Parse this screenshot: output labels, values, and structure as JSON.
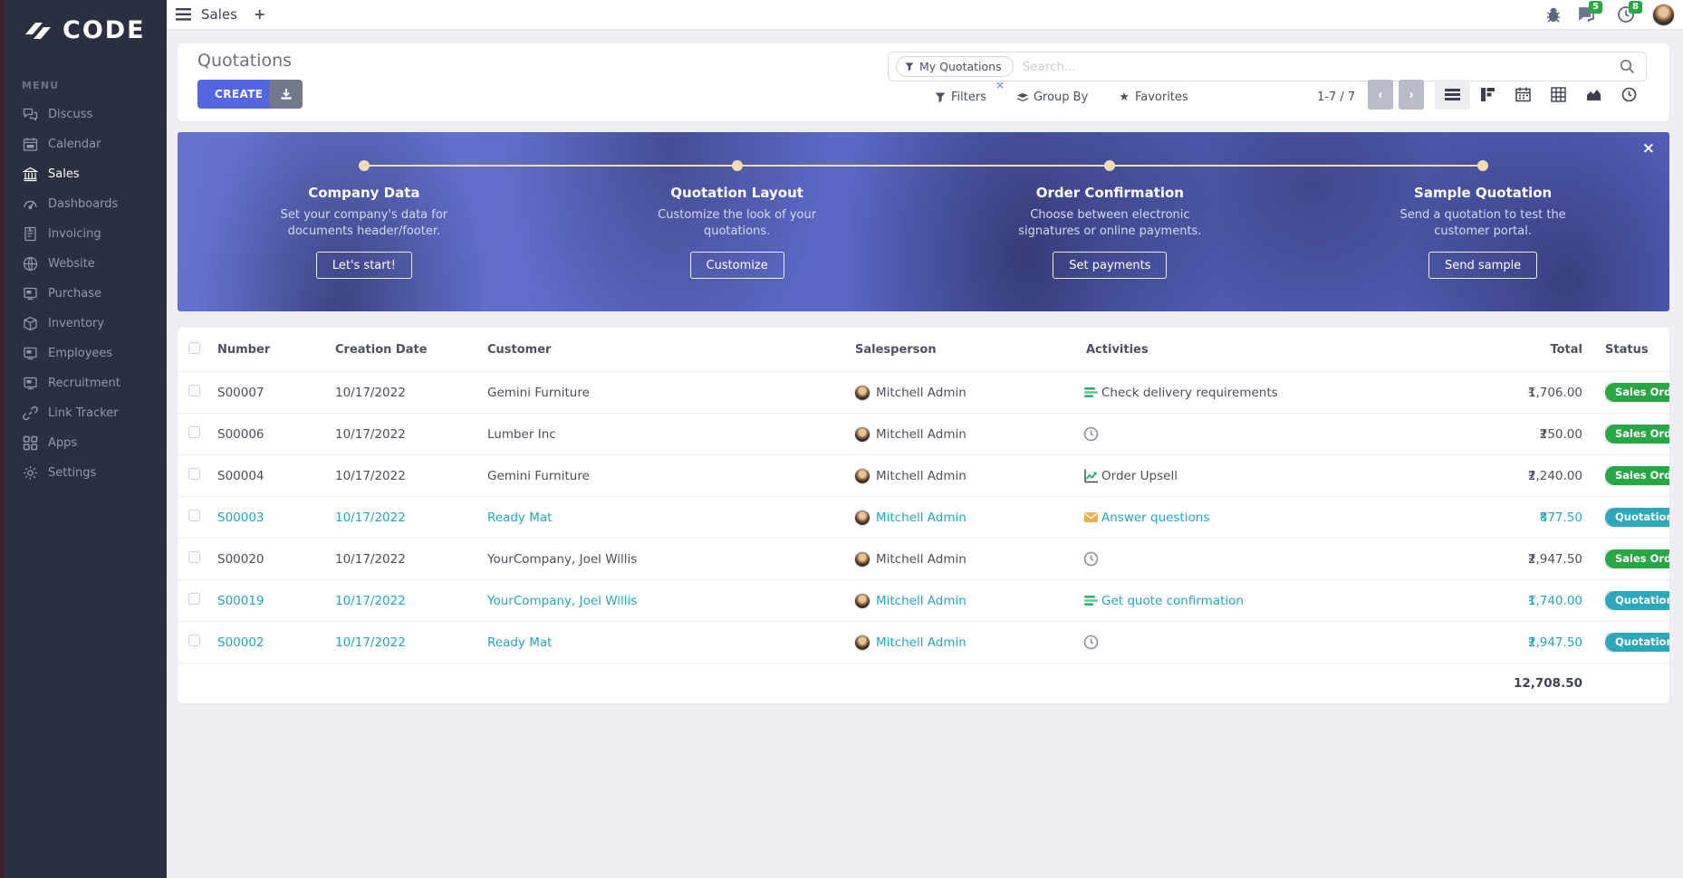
{
  "brand": {
    "name": "CODE"
  },
  "topbar": {
    "app_name": "Sales",
    "new_tab_label": "+",
    "messages_badge": "5",
    "activities_badge": "8"
  },
  "sidebar": {
    "section_label": "MENU",
    "items": [
      {
        "label": "Discuss",
        "icon": "discuss-icon",
        "active": false
      },
      {
        "label": "Calendar",
        "icon": "calendar-icon",
        "active": false
      },
      {
        "label": "Sales",
        "icon": "sales-icon",
        "active": true
      },
      {
        "label": "Dashboards",
        "icon": "dashboards-icon",
        "active": false
      },
      {
        "label": "Invoicing",
        "icon": "invoicing-icon",
        "active": false
      },
      {
        "label": "Website",
        "icon": "website-icon",
        "active": false
      },
      {
        "label": "Purchase",
        "icon": "purchase-icon",
        "active": false
      },
      {
        "label": "Inventory",
        "icon": "inventory-icon",
        "active": false
      },
      {
        "label": "Employees",
        "icon": "employees-icon",
        "active": false
      },
      {
        "label": "Recruitment",
        "icon": "recruitment-icon",
        "active": false
      },
      {
        "label": "Link Tracker",
        "icon": "link-tracker-icon",
        "active": false
      },
      {
        "label": "Apps",
        "icon": "apps-icon",
        "active": false
      },
      {
        "label": "Settings",
        "icon": "settings-icon",
        "active": false
      }
    ]
  },
  "control_panel": {
    "title": "Quotations",
    "create_button": "CREATE",
    "search": {
      "facet_label": "My Quotations",
      "facet_remove": "×",
      "placeholder": "Search..."
    },
    "filters_label": "Filters",
    "group_by_label": "Group By",
    "favorites_label": "Favorites",
    "pager_text": "1-7 / 7",
    "pager_prev": "‹",
    "pager_next": "›"
  },
  "banner": {
    "close_label": "×",
    "steps": [
      {
        "title": "Company Data",
        "desc": "Set your company's data for documents header/footer.",
        "button": "Let's start!"
      },
      {
        "title": "Quotation Layout",
        "desc": "Customize the look of your quotations.",
        "button": "Customize"
      },
      {
        "title": "Order Confirmation",
        "desc": "Choose between electronic signatures or online payments.",
        "button": "Set payments"
      },
      {
        "title": "Sample Quotation",
        "desc": "Send a quotation to test the customer portal.",
        "button": "Send sample"
      }
    ]
  },
  "table": {
    "headers": {
      "number": "Number",
      "date": "Creation Date",
      "customer": "Customer",
      "salesperson": "Salesperson",
      "activities": "Activities",
      "total": "Total",
      "status": "Status"
    },
    "currency": "₹",
    "rows": [
      {
        "number": "S00007",
        "date": "10/17/2022",
        "customer": "Gemini Furniture",
        "salesperson": "Mitchell Admin",
        "activity": "Check delivery requirements",
        "activity_icon": "tasks-icon",
        "total": "1,706.00",
        "status": "Sales Order",
        "status_color": "green",
        "teal": false
      },
      {
        "number": "S00006",
        "date": "10/17/2022",
        "customer": "Lumber Inc",
        "salesperson": "Mitchell Admin",
        "activity": "",
        "activity_icon": "clock-icon",
        "total": "250.00",
        "status": "Sales Order",
        "status_color": "green",
        "teal": false
      },
      {
        "number": "S00004",
        "date": "10/17/2022",
        "customer": "Gemini Furniture",
        "salesperson": "Mitchell Admin",
        "activity": "Order Upsell",
        "activity_icon": "chart-icon",
        "total": "2,240.00",
        "status": "Sales Order",
        "status_color": "green",
        "teal": false
      },
      {
        "number": "S00003",
        "date": "10/17/2022",
        "customer": "Ready Mat",
        "salesperson": "Mitchell Admin",
        "activity": "Answer questions",
        "activity_icon": "envelope-icon",
        "total": "877.50",
        "status": "Quotation",
        "status_color": "teal",
        "teal": true
      },
      {
        "number": "S00020",
        "date": "10/17/2022",
        "customer": "YourCompany, Joel Willis",
        "salesperson": "Mitchell Admin",
        "activity": "",
        "activity_icon": "clock-icon",
        "total": "2,947.50",
        "status": "Sales Order",
        "status_color": "green",
        "teal": false
      },
      {
        "number": "S00019",
        "date": "10/17/2022",
        "customer": "YourCompany, Joel Willis",
        "salesperson": "Mitchell Admin",
        "activity": "Get quote confirmation",
        "activity_icon": "tasks-icon",
        "total": "1,740.00",
        "status": "Quotation Sent",
        "status_color": "teal",
        "teal": true
      },
      {
        "number": "S00002",
        "date": "10/17/2022",
        "customer": "Ready Mat",
        "salesperson": "Mitchell Admin",
        "activity": "",
        "activity_icon": "clock-icon",
        "total": "2,947.50",
        "status": "Quotation",
        "status_color": "teal",
        "teal": true
      }
    ],
    "footer_total": "12,708.50"
  },
  "colors": {
    "primary": "#5566e2",
    "link_teal": "#24a5bf",
    "badge_green": "#28a745",
    "badge_teal": "#2ea7bc",
    "sidebar_bg": "#2b3040",
    "banner_accent": "#f0ddb4"
  }
}
